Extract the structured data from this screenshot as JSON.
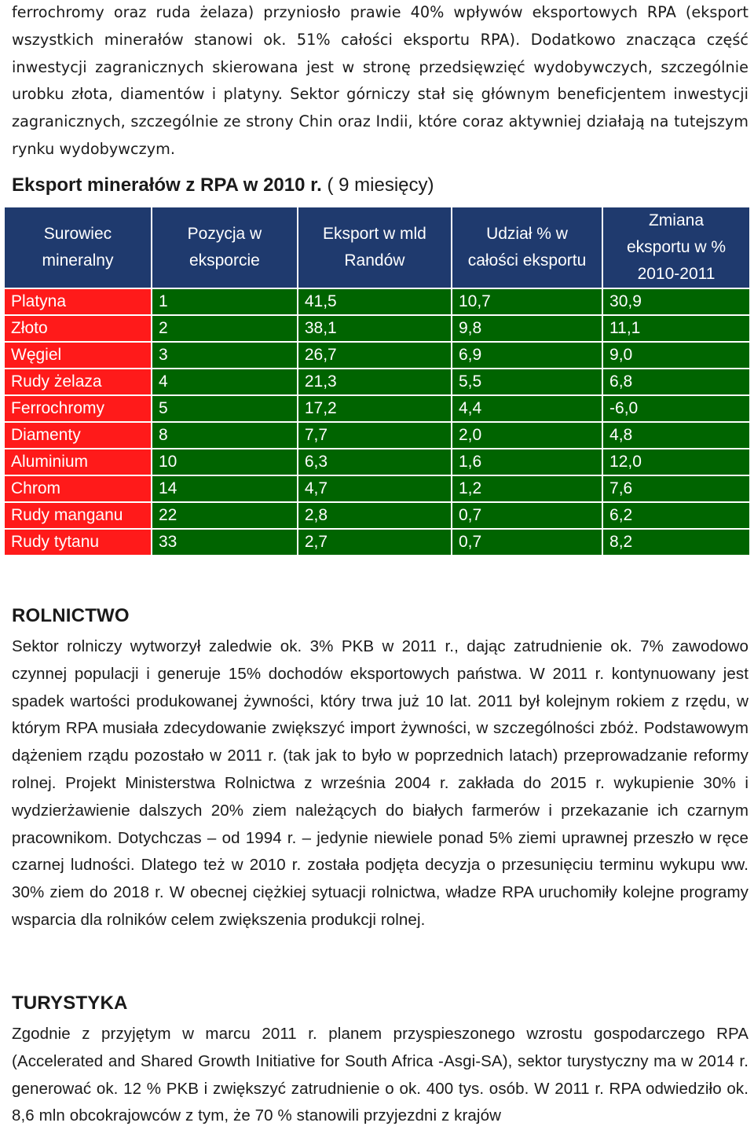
{
  "intro": {
    "text": "ferrochromy oraz ruda żelaza) przyniosło prawie 40% wpływów eksportowych RPA (eksport wszystkich minerałów stanowi ok. 51% całości eksportu RPA). Dodatkowo znacząca część inwestycji zagranicznych skierowana jest w stronę przedsięwzięć wydobywczych, szczególnie urobku złota, diamentów i platyny. Sektor górniczy stał się głównym beneficjentem inwestycji zagranicznych, szczególnie ze strony Chin oraz Indii, które coraz aktywniej działają na tutejszym rynku wydobywczym."
  },
  "table_title": {
    "main": "Eksport minerałów z RPA w 2010 r.",
    "extra": " ( 9 miesięcy)"
  },
  "table": {
    "headers": [
      [
        "Surowiec",
        "mineralny"
      ],
      [
        "Pozycja w",
        "eksporcie"
      ],
      [
        "Eksport w mld",
        "Randów"
      ],
      [
        "Udział % w",
        "całości eksportu"
      ],
      [
        "Zmiana",
        "eksportu w %",
        "2010-2011"
      ]
    ],
    "rows": [
      [
        "Platyna",
        "1",
        "41,5",
        "10,7",
        "30,9"
      ],
      [
        "Złoto",
        "2",
        "38,1",
        "9,8",
        "11,1"
      ],
      [
        "Węgiel",
        "3",
        "26,7",
        "6,9",
        "9,0"
      ],
      [
        "Rudy żelaza",
        "4",
        "21,3",
        "5,5",
        "6,8"
      ],
      [
        "Ferrochromy",
        "5",
        "17,2",
        "4,4",
        "-6,0"
      ],
      [
        "Diamenty",
        "8",
        "7,7",
        "2,0",
        "4,8"
      ],
      [
        "Aluminium",
        "10",
        "6,3",
        "1,6",
        "12,0"
      ],
      [
        "Chrom",
        "14",
        "4,7",
        "1,2",
        "7,6"
      ],
      [
        "Rudy manganu",
        "22",
        "2,8",
        "0,7",
        "6,2"
      ],
      [
        "Rudy tytanu",
        "33",
        "2,7",
        "0,7",
        "8,2"
      ]
    ],
    "colors": {
      "header": "#1f3a6e",
      "name_cells": "#ff1a1a",
      "value_cells": "#006400"
    }
  },
  "rolnictwo": {
    "heading": "ROLNICTWO",
    "text": "Sektor rolniczy wytworzył zaledwie ok. 3% PKB w 2011 r., dając zatrudnienie ok. 7% zawodowo czynnej populacji i generuje 15% dochodów eksportowych państwa. W 2011 r. kontynuowany jest spadek wartości produkowanej żywności, który trwa już 10 lat. 2011 był kolejnym rokiem z rzędu, w którym RPA musiała zdecydowanie zwiększyć import żywności, w szczególności zbóż. Podstawowym dążeniem rządu pozostało w 2011 r. (tak jak to było w poprzednich latach) przeprowadzanie reformy rolnej. Projekt Ministerstwa Rolnictwa z września 2004 r. zakłada do 2015 r. wykupienie 30% i wydzierżawienie dalszych 20% ziem należących do białych farmerów i przekazanie ich czarnym pracownikom. Dotychczas – od 1994 r. – jedynie niewiele ponad 5% ziemi uprawnej przeszło w ręce czarnej ludności. Dlatego też w 2010 r. została podjęta decyzja o przesunięciu terminu wykupu ww. 30% ziem do 2018 r. W obecnej ciężkiej sytuacji rolnictwa, władze RPA uruchomiły kolejne programy wsparcia dla rolników celem zwiększenia produkcji rolnej."
  },
  "turystyka": {
    "heading": "TURYSTYKA",
    "text": "Zgodnie z przyjętym w marcu 2011 r. planem przyspieszonego wzrostu gospodarczego RPA (Accelerated and Shared Growth Initiative for South Africa -Asgi-SA), sektor turystyczny ma w 2014 r. generować ok. 12 % PKB i zwiększyć zatrudnienie o ok. 400 tys. osób. W 2011 r. RPA odwiedziło ok. 8,6 mln obcokrajowców z tym, że 70 % stanowili przyjezdni z krajów"
  }
}
